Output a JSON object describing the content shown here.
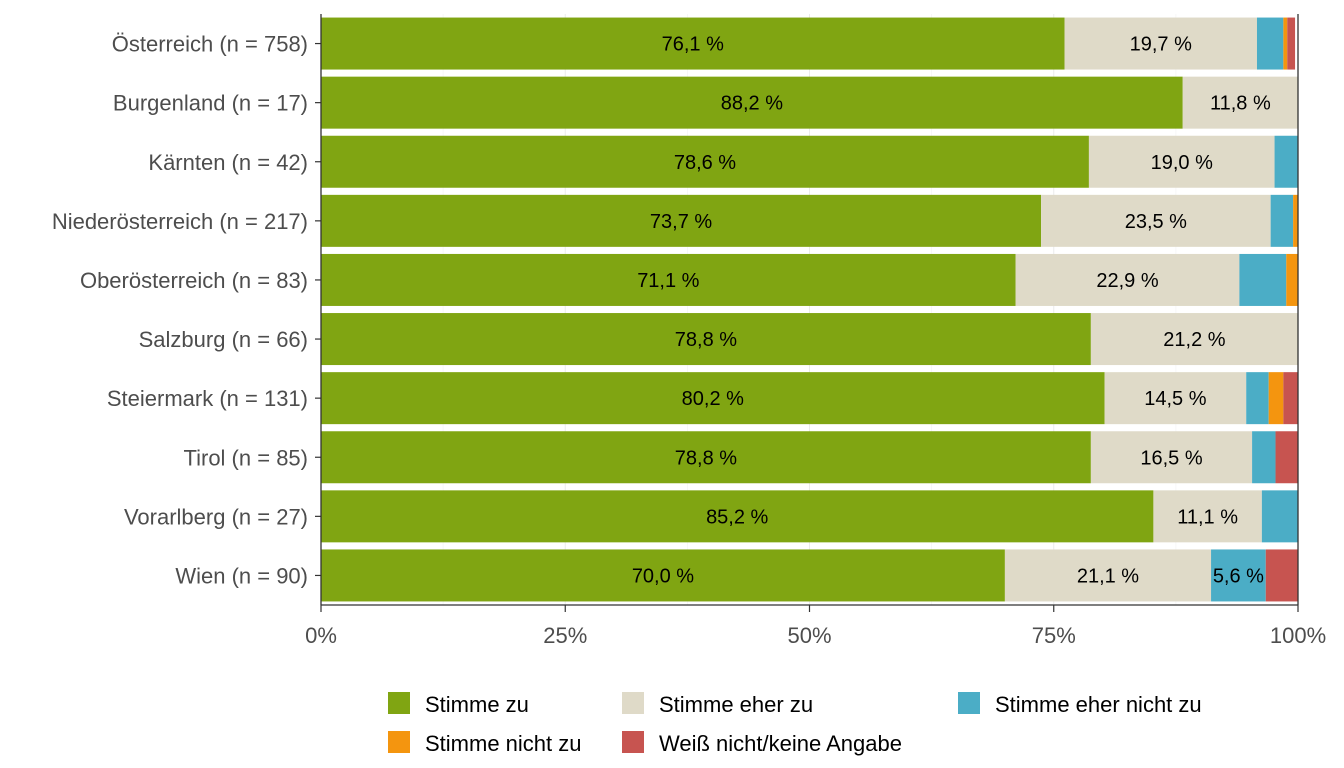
{
  "chart_data": {
    "type": "bar",
    "orientation": "horizontal",
    "stacked": true,
    "title": "",
    "xlabel": "",
    "ylabel": "",
    "xlim": [
      0,
      100
    ],
    "x_ticks": [
      "0%",
      "25%",
      "50%",
      "75%",
      "100%"
    ],
    "grid": true,
    "legend_position": "bottom",
    "categories": [
      "Österreich (n = 758)",
      "Burgenland (n = 17)",
      "Kärnten (n = 42)",
      "Niederösterreich (n = 217)",
      "Oberösterreich (n = 83)",
      "Salzburg (n = 66)",
      "Steiermark (n = 131)",
      "Tirol (n = 85)",
      "Vorarlberg (n = 27)",
      "Wien (n = 90)"
    ],
    "series": [
      {
        "name": "Stimme zu",
        "color": "#80a512",
        "values": [
          76.1,
          88.2,
          78.6,
          73.7,
          71.1,
          78.8,
          80.2,
          78.8,
          85.2,
          70.0
        ],
        "labels": [
          "76,1 %",
          "88,2 %",
          "78,6 %",
          "73,7 %",
          "71,1 %",
          "78,8 %",
          "80,2 %",
          "78,8 %",
          "85,2 %",
          "70,0 %"
        ]
      },
      {
        "name": "Stimme eher zu",
        "color": "#dfdac8",
        "values": [
          19.7,
          11.8,
          19.0,
          23.5,
          22.9,
          21.2,
          14.5,
          16.5,
          11.1,
          21.1
        ],
        "labels": [
          "19,7 %",
          "11,8 %",
          "19,0 %",
          "23,5 %",
          "22,9 %",
          "21,2 %",
          "14,5 %",
          "16,5 %",
          "11,1 %",
          "21,1 %"
        ]
      },
      {
        "name": "Stimme eher nicht zu",
        "color": "#4badc6",
        "values": [
          2.7,
          0,
          2.4,
          2.3,
          4.8,
          0,
          2.3,
          2.4,
          3.7,
          5.6
        ],
        "labels": [
          "",
          "",
          "",
          "",
          "",
          "",
          "",
          "",
          "",
          "5,6 %"
        ]
      },
      {
        "name": "Stimme nicht zu",
        "color": "#f4950f",
        "values": [
          0.4,
          0,
          0,
          0.5,
          1.2,
          0,
          1.5,
          0,
          0,
          0
        ],
        "labels": [
          "",
          "",
          "",
          "",
          "",
          "",
          "",
          "",
          "",
          ""
        ]
      },
      {
        "name": "Weiß nicht/keine Angabe",
        "color": "#c75450",
        "values": [
          0.8,
          0,
          0,
          0,
          0,
          0,
          1.5,
          2.4,
          0,
          3.3
        ],
        "labels": [
          "",
          "",
          "",
          "",
          "",
          "",
          "",
          "",
          "",
          ""
        ]
      }
    ],
    "legend_order": [
      "Stimme zu",
      "Stimme eher zu",
      "Stimme eher nicht zu",
      "Stimme nicht zu",
      "Weiß nicht/keine Angabe"
    ]
  }
}
